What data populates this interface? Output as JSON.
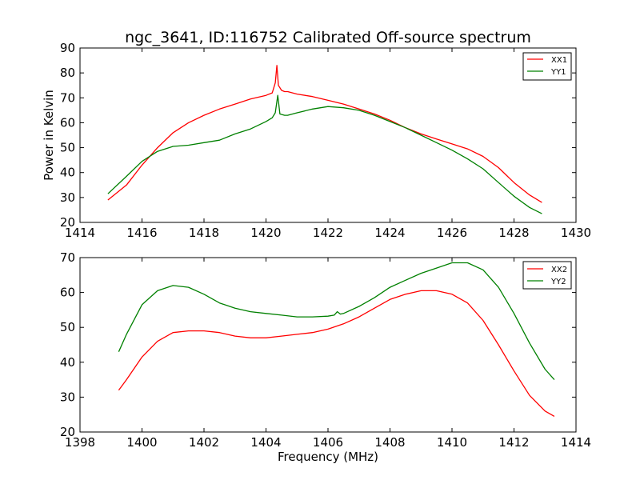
{
  "chart_data": [
    {
      "type": "line",
      "title": "ngc_3641, ID:116752 Calibrated Off-source spectrum",
      "xlabel": "",
      "ylabel": "Power in Kelvin",
      "xlim": [
        1414,
        1430
      ],
      "ylim": [
        20,
        90
      ],
      "xticks": [
        "1414",
        "1416",
        "1418",
        "1420",
        "1422",
        "1424",
        "1426",
        "1428",
        "1430"
      ],
      "yticks": [
        "20",
        "30",
        "40",
        "50",
        "60",
        "70",
        "80",
        "90"
      ],
      "legend_position": "top-right",
      "series": [
        {
          "name": "XX1",
          "color": "#ff0000",
          "x": [
            1414.9,
            1415.5,
            1416.0,
            1416.5,
            1417.0,
            1417.5,
            1418.0,
            1418.5,
            1419.0,
            1419.5,
            1420.0,
            1420.2,
            1420.3,
            1420.35,
            1420.4,
            1420.5,
            1420.6,
            1420.7,
            1421.0,
            1421.5,
            1422.0,
            1422.5,
            1423.0,
            1423.5,
            1424.0,
            1424.5,
            1425.0,
            1425.5,
            1426.0,
            1426.5,
            1427.0,
            1427.5,
            1428.0,
            1428.5,
            1428.9
          ],
          "y": [
            29,
            35,
            43,
            50,
            56,
            60,
            63,
            65.5,
            67.5,
            69.5,
            71,
            72,
            76,
            83,
            75,
            73,
            72.5,
            72.5,
            71.5,
            70.5,
            69,
            67.5,
            65.5,
            63.5,
            61,
            58,
            55.5,
            53.5,
            51.5,
            49.5,
            46.5,
            42,
            36,
            31,
            28
          ]
        },
        {
          "name": "YY1",
          "color": "#008000",
          "x": [
            1414.9,
            1415.5,
            1416.0,
            1416.5,
            1417.0,
            1417.5,
            1418.0,
            1418.5,
            1419.0,
            1419.5,
            1420.0,
            1420.2,
            1420.3,
            1420.38,
            1420.45,
            1420.6,
            1420.7,
            1421.0,
            1421.5,
            1422.0,
            1422.5,
            1423.0,
            1423.5,
            1424.0,
            1424.5,
            1425.0,
            1425.5,
            1426.0,
            1426.5,
            1427.0,
            1427.5,
            1428.0,
            1428.5,
            1428.9
          ],
          "y": [
            31.5,
            38.5,
            44.5,
            48.5,
            50.5,
            51,
            52,
            53,
            55.5,
            57.5,
            60.5,
            62,
            64,
            71,
            63.5,
            63,
            63,
            64,
            65.5,
            66.5,
            66,
            65,
            63,
            60.5,
            58,
            55,
            52,
            49,
            45.5,
            41.5,
            36,
            30.5,
            26,
            23.5
          ]
        }
      ]
    },
    {
      "type": "line",
      "title": "",
      "xlabel": "Frequency (MHz)",
      "ylabel": "",
      "xlim": [
        1398,
        1414
      ],
      "ylim": [
        20,
        70
      ],
      "xticks": [
        "1398",
        "1400",
        "1402",
        "1404",
        "1406",
        "1408",
        "1410",
        "1412",
        "1414"
      ],
      "yticks": [
        "20",
        "30",
        "40",
        "50",
        "60",
        "70"
      ],
      "legend_position": "top-right",
      "series": [
        {
          "name": "XX2",
          "color": "#ff0000",
          "x": [
            1399.25,
            1399.5,
            1400.0,
            1400.5,
            1401.0,
            1401.5,
            1402.0,
            1402.5,
            1403.0,
            1403.5,
            1404.0,
            1404.5,
            1405.0,
            1405.5,
            1406.0,
            1406.5,
            1407.0,
            1407.5,
            1408.0,
            1408.5,
            1409.0,
            1409.5,
            1410.0,
            1410.5,
            1411.0,
            1411.5,
            1412.0,
            1412.5,
            1413.0,
            1413.3
          ],
          "y": [
            32,
            35,
            41.5,
            46,
            48.5,
            49,
            49,
            48.5,
            47.5,
            47,
            47,
            47.5,
            48,
            48.5,
            49.5,
            51,
            53,
            55.5,
            58,
            59.5,
            60.5,
            60.5,
            59.5,
            57,
            52,
            45,
            37.5,
            30.5,
            26,
            24.5
          ]
        },
        {
          "name": "YY2",
          "color": "#008000",
          "x": [
            1399.25,
            1399.5,
            1400.0,
            1400.5,
            1401.0,
            1401.5,
            1402.0,
            1402.5,
            1403.0,
            1403.5,
            1404.0,
            1404.5,
            1405.0,
            1405.5,
            1406.0,
            1406.2,
            1406.3,
            1406.4,
            1406.5,
            1407.0,
            1407.5,
            1408.0,
            1408.5,
            1409.0,
            1409.5,
            1410.0,
            1410.5,
            1411.0,
            1411.5,
            1412.0,
            1412.5,
            1413.0,
            1413.3
          ],
          "y": [
            43,
            48,
            56.5,
            60.5,
            62,
            61.5,
            59.5,
            57,
            55.5,
            54.5,
            54,
            53.5,
            53,
            53,
            53.2,
            53.5,
            54.5,
            53.8,
            54,
            56,
            58.5,
            61.5,
            63.5,
            65.5,
            67,
            68.5,
            68.5,
            66.5,
            61.5,
            54,
            45.5,
            38,
            35
          ]
        }
      ]
    }
  ]
}
